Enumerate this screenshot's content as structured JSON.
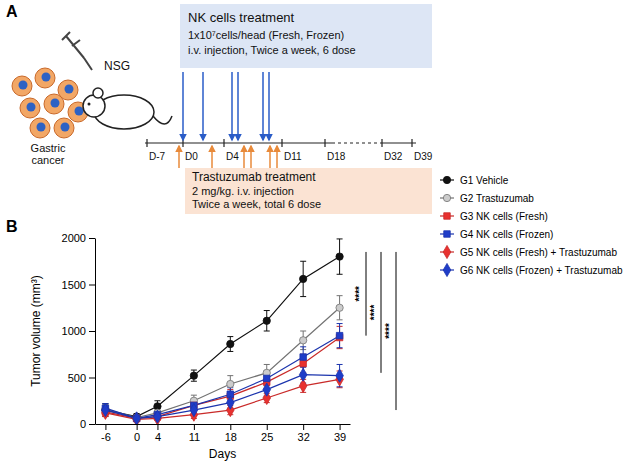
{
  "diagram": {
    "panel_label": "A",
    "mouse_label": "NSG",
    "cells_label": "Gastric cancer",
    "nk_box": {
      "title": "NK cells treatment",
      "lines": [
        "1x10⁷cells/head (Fresh, Frozen)",
        "i.v. injection, Twice a week, 6 dose"
      ]
    },
    "trastuzumab_box": {
      "title": "Trastuzumab treatment",
      "lines": [
        "2 mg/kg. i.v. injection",
        "Twice a week, total 6 dose"
      ]
    },
    "timeline": [
      "D-7",
      "D0",
      "D4",
      "D11",
      "D18",
      "D32",
      "D39"
    ]
  },
  "chart_data": {
    "type": "line",
    "panel_label": "B",
    "x_label": "Days",
    "y_label": "Tumor volume (mm³)",
    "x": [
      -6,
      0,
      4,
      11,
      18,
      25,
      32,
      39
    ],
    "xlim": [
      -8,
      41
    ],
    "xticks": [
      -6,
      0,
      4,
      11,
      18,
      25,
      32,
      39
    ],
    "ylim": [
      0,
      2000
    ],
    "yticks": [
      0,
      500,
      1000,
      1500,
      2000
    ],
    "legend": "right",
    "series": [
      {
        "name": "G1 Vehicle",
        "color": "#111111",
        "marker": "circle",
        "values": [
          150,
          80,
          190,
          520,
          860,
          1110,
          1560,
          1800
        ],
        "errors": [
          70,
          30,
          60,
          60,
          80,
          110,
          190,
          190
        ]
      },
      {
        "name": "G2 Trastuzumab",
        "color": "#cccccc",
        "marker": "circle",
        "values": [
          160,
          70,
          120,
          250,
          430,
          550,
          900,
          1250
        ],
        "errors": [
          50,
          20,
          40,
          60,
          90,
          90,
          100,
          130
        ]
      },
      {
        "name": "G3 NK cells (Fresh)",
        "color": "#e8312f",
        "marker": "square",
        "values": [
          130,
          60,
          80,
          200,
          300,
          450,
          650,
          930
        ],
        "errors": [
          40,
          20,
          30,
          50,
          70,
          80,
          100,
          120
        ]
      },
      {
        "name": "G4 NK cells (Frozen)",
        "color": "#1f3cc8",
        "marker": "square",
        "values": [
          170,
          60,
          100,
          200,
          320,
          490,
          720,
          950
        ],
        "errors": [
          50,
          20,
          40,
          50,
          70,
          80,
          110,
          130
        ]
      },
      {
        "name": "G5 NK cells (Fresh) + Trastuzumab",
        "color": "#e8312f",
        "marker": "diamond",
        "values": [
          120,
          50,
          60,
          100,
          150,
          280,
          410,
          480
        ],
        "errors": [
          40,
          15,
          20,
          40,
          50,
          50,
          70,
          90
        ]
      },
      {
        "name": "G6 NK cells (Frozen) + Trastuzumab",
        "color": "#1f3cc8",
        "marker": "diamond",
        "values": [
          150,
          60,
          80,
          150,
          230,
          370,
          530,
          520
        ],
        "errors": [
          40,
          20,
          30,
          50,
          60,
          70,
          90,
          120
        ]
      }
    ],
    "annotations": [
      {
        "text": "****",
        "y_range": [
          1850,
          950
        ]
      },
      {
        "text": "****",
        "y_range": [
          1850,
          550
        ]
      },
      {
        "text": "****",
        "y_range": [
          1850,
          150
        ]
      }
    ]
  }
}
